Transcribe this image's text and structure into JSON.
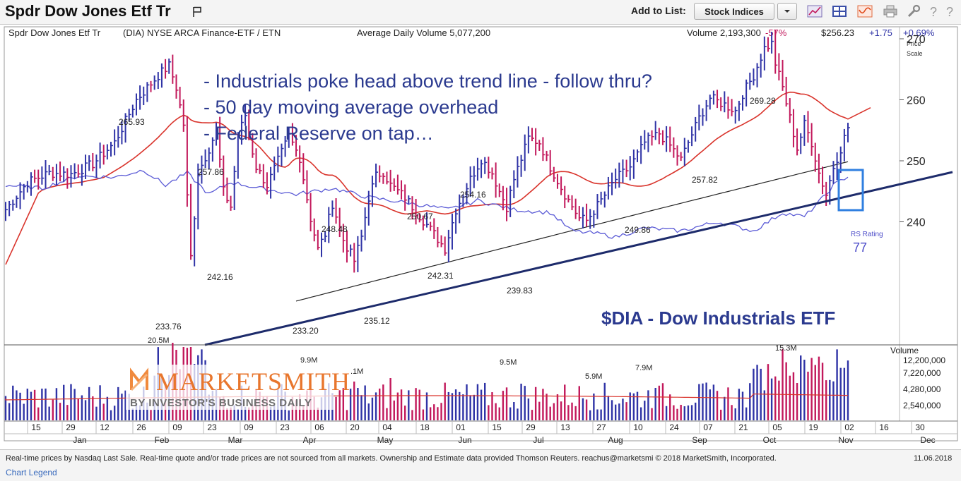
{
  "toolbar": {
    "title": "Spdr Dow Jones Etf Tr",
    "add_to_list_label": "Add to List:",
    "list_value": "Stock Indices"
  },
  "header": {
    "name": "Spdr Dow Jones Etf Tr",
    "info": "(DIA) NYSE ARCA Finance-ETF / ETN",
    "avg_volume": "Average Daily Volume 5,077,200",
    "volume": "Volume 2,193,300",
    "volume_change": "-57%",
    "price": "$256.23",
    "change": "+1.75",
    "change_pct": "+0.69%",
    "price_scale": "Price",
    "price_scale2": "Scale"
  },
  "annotations": [
    "- Industrials poke head above trend line - follow thru?",
    "- 50 day moving average overhead",
    "- Federal Reserve on tap…"
  ],
  "chart_caption": "$DIA - Dow Industrials ETF",
  "rs": {
    "label": "RS Rating",
    "value": "77"
  },
  "brand": {
    "name": "MARKETSMITH",
    "tagline": "BY INVESTOR'S BUSINESS DAILY"
  },
  "volume_axis": {
    "title": "Volume",
    "ticks": [
      "12,200,000",
      "7,220,000",
      "4,280,000",
      "2,540,000"
    ]
  },
  "footer": {
    "disclaimer": "Real-time prices by Nasdaq Last Sale. Real-time quote and/or trade prices are not sourced from all markets. Ownership and Estimate data provided Thomson Reuters. reachus@marketsmi   © 2018 MarketSmith, Incorporated.",
    "date": "11.06.2018",
    "legend_link": "Chart Legend"
  },
  "chart_data": {
    "type": "line",
    "price_axis": {
      "ticks": [
        240,
        250,
        260,
        270
      ],
      "range": [
        229,
        279
      ]
    },
    "x_ticks": [
      "15",
      "29",
      "12",
      "26",
      "09",
      "23",
      "09",
      "23",
      "06",
      "20",
      "04",
      "18",
      "01",
      "15",
      "29",
      "13",
      "27",
      "10",
      "24",
      "07",
      "21",
      "05",
      "19",
      "02",
      "16",
      "30"
    ],
    "months": [
      "Jan",
      "Feb",
      "Mar",
      "Apr",
      "May",
      "Jun",
      "Jul",
      "Aug",
      "Sep",
      "Oct",
      "Nov",
      "Dec"
    ],
    "price_labels": [
      {
        "text": "265.93",
        "value": 265.93
      },
      {
        "text": "257.86",
        "value": 257.86
      },
      {
        "text": "242.16",
        "value": 242.16
      },
      {
        "text": "233.76",
        "value": 233.76
      },
      {
        "text": "233.20",
        "value": 233.2
      },
      {
        "text": "248.48",
        "value": 248.48
      },
      {
        "text": "235.12",
        "value": 235.12
      },
      {
        "text": "250.67",
        "value": 250.67
      },
      {
        "text": "242.31",
        "value": 242.31
      },
      {
        "text": "254.16",
        "value": 254.16
      },
      {
        "text": "239.83",
        "value": 239.83
      },
      {
        "text": "249.86",
        "value": 249.86
      },
      {
        "text": "257.82",
        "value": 257.82
      },
      {
        "text": "269.28",
        "value": 269.28
      }
    ],
    "volume_labels": [
      "20.5M",
      "9.9M",
      ".1M",
      "9.5M",
      "5.9M",
      "7.9M",
      "15.3M"
    ],
    "colors": {
      "up": "#2f33a6",
      "down": "#c2185b",
      "ma50": "#d9332b",
      "ma200": "#222222",
      "rs_line": "#5b5bd6",
      "trend": "#1d2b6b",
      "box": "#2f7fe0"
    }
  }
}
